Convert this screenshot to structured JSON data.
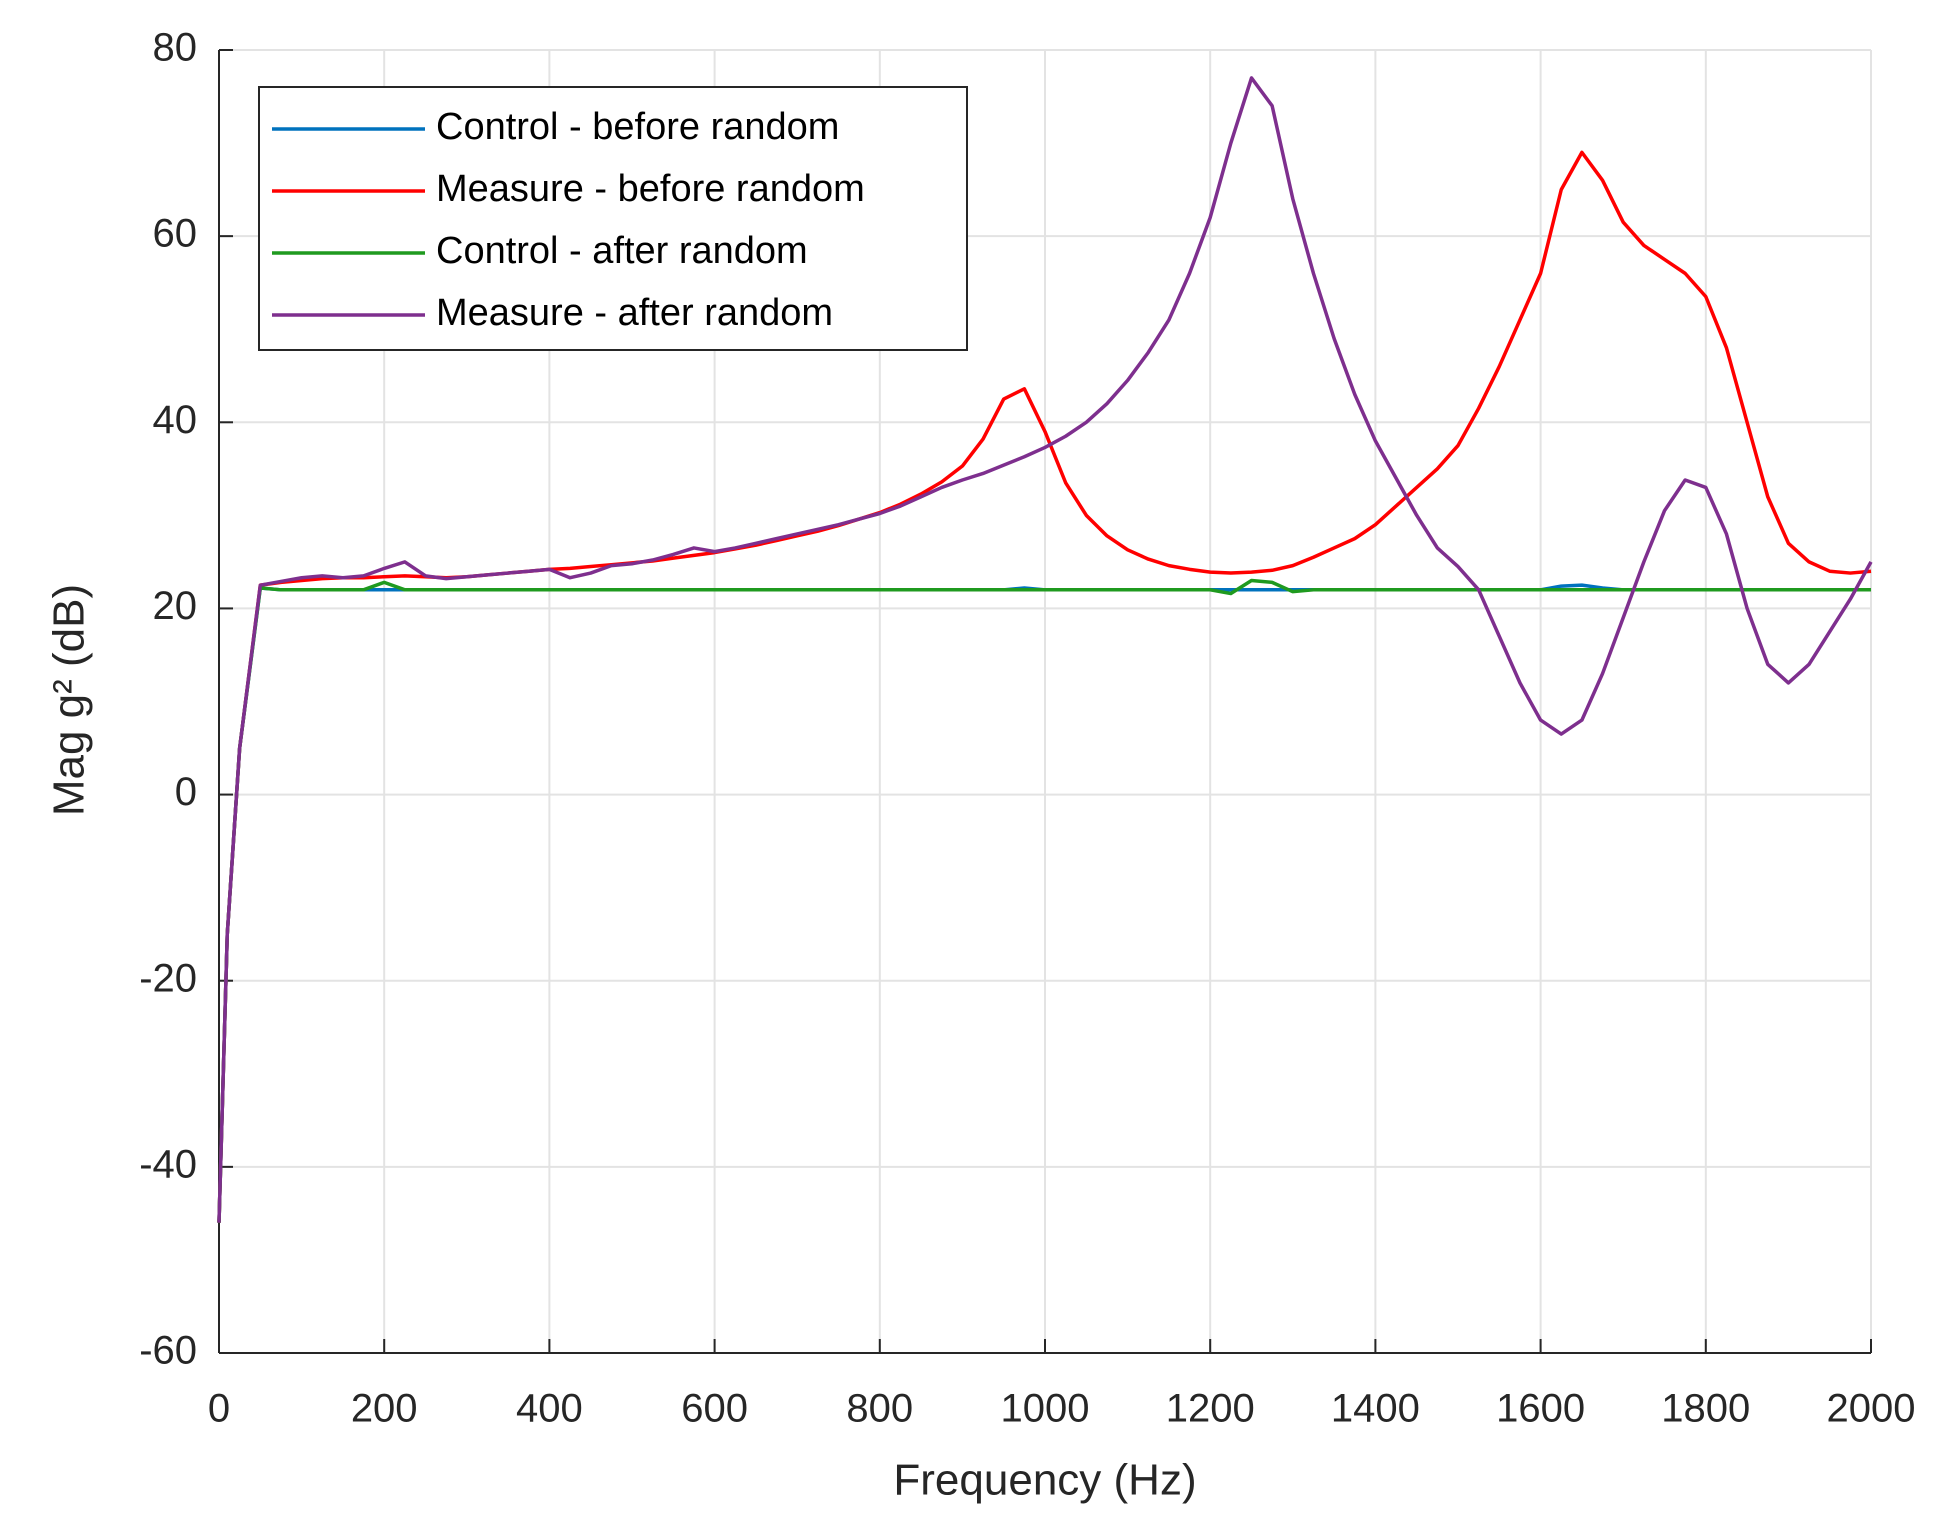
{
  "chart_data": {
    "type": "line",
    "x_label": "Frequency (Hz)",
    "y_label": "Mag g² (dB)",
    "x": [
      0,
      10,
      25,
      50,
      75,
      100,
      125,
      150,
      175,
      200,
      225,
      250,
      275,
      300,
      325,
      350,
      375,
      400,
      425,
      450,
      475,
      500,
      525,
      550,
      575,
      600,
      625,
      650,
      675,
      700,
      725,
      750,
      775,
      800,
      825,
      850,
      875,
      900,
      925,
      950,
      975,
      1000,
      1025,
      1050,
      1075,
      1100,
      1125,
      1150,
      1175,
      1200,
      1225,
      1250,
      1275,
      1300,
      1325,
      1350,
      1375,
      1400,
      1425,
      1450,
      1475,
      1500,
      1525,
      1550,
      1575,
      1600,
      1625,
      1650,
      1675,
      1700,
      1725,
      1750,
      1775,
      1800,
      1825,
      1850,
      1875,
      1900,
      1925,
      1950,
      1975,
      2000
    ],
    "series": [
      {
        "name": "Control - before random",
        "color": "#0072bd",
        "values": [
          -46,
          -15,
          5,
          22.2,
          22,
          22,
          22,
          22,
          22,
          22,
          22,
          22,
          22,
          22,
          22,
          22,
          22,
          22,
          22,
          22,
          22,
          22,
          22,
          22,
          22,
          22,
          22,
          22,
          22,
          22,
          22,
          22,
          22,
          22,
          22,
          22,
          22,
          22,
          22,
          22,
          22.2,
          22,
          22,
          22,
          22,
          22,
          22,
          22,
          22,
          22,
          22,
          22,
          22,
          22,
          22,
          22,
          22,
          22,
          22,
          22,
          22,
          22,
          22,
          22,
          22,
          22,
          22.4,
          22.5,
          22.2,
          22,
          22,
          22,
          22,
          22,
          22,
          22,
          22,
          22,
          22,
          22,
          22,
          22
        ]
      },
      {
        "name": "Measure - before random",
        "color": "#ff0000",
        "values": [
          -46,
          -15,
          5,
          22.5,
          22.8,
          23,
          23.2,
          23.3,
          23.3,
          23.4,
          23.5,
          23.4,
          23.3,
          23.4,
          23.6,
          23.8,
          24,
          24.2,
          24.3,
          24.5,
          24.7,
          24.9,
          25.1,
          25.4,
          25.7,
          26,
          26.4,
          26.8,
          27.3,
          27.8,
          28.3,
          28.9,
          29.6,
          30.3,
          31.2,
          32.3,
          33.6,
          35.3,
          38.2,
          42.5,
          43.6,
          39,
          33.5,
          30,
          27.8,
          26.3,
          25.3,
          24.6,
          24.2,
          23.9,
          23.8,
          23.9,
          24.1,
          24.6,
          25.5,
          26.5,
          27.5,
          29,
          31,
          33,
          35,
          37.5,
          41.5,
          46,
          51,
          56,
          65,
          69,
          66,
          61.5,
          59,
          57.5,
          56,
          53.5,
          48,
          40,
          32,
          27,
          25,
          24,
          23.8,
          24
        ]
      },
      {
        "name": "Control - after random",
        "color": "#1f9a1f",
        "values": [
          -46,
          -15,
          5,
          22.2,
          22,
          22,
          22,
          22,
          22,
          22.8,
          22,
          22,
          22,
          22,
          22,
          22,
          22,
          22,
          22,
          22,
          22,
          22,
          22,
          22,
          22,
          22,
          22,
          22,
          22,
          22,
          22,
          22,
          22,
          22,
          22,
          22,
          22,
          22,
          22,
          22,
          22,
          22,
          22,
          22,
          22,
          22,
          22,
          22,
          22,
          22,
          21.6,
          23,
          22.8,
          21.8,
          22,
          22,
          22,
          22,
          22,
          22,
          22,
          22,
          22,
          22,
          22,
          22,
          22,
          22,
          22,
          22,
          22,
          22,
          22,
          22,
          22,
          22,
          22,
          22,
          22,
          22,
          22,
          22
        ]
      },
      {
        "name": "Measure - after random",
        "color": "#7e2f8e",
        "values": [
          -46,
          -15,
          5,
          22.5,
          22.9,
          23.3,
          23.5,
          23.3,
          23.5,
          24.3,
          25,
          23.5,
          23.2,
          23.4,
          23.6,
          23.8,
          24,
          24.2,
          23.3,
          23.8,
          24.6,
          24.8,
          25.2,
          25.8,
          26.5,
          26.1,
          26.5,
          27,
          27.5,
          28,
          28.5,
          29,
          29.6,
          30.2,
          31,
          32,
          33,
          33.8,
          34.5,
          35.4,
          36.3,
          37.3,
          38.5,
          40,
          42,
          44.5,
          47.5,
          51,
          56,
          62,
          70,
          77,
          74,
          64,
          56,
          49,
          43,
          38,
          34,
          30,
          26.5,
          24.5,
          22,
          17,
          12,
          8,
          6.5,
          8,
          13,
          19,
          25,
          30.5,
          33.8,
          33,
          28,
          20,
          14,
          12,
          14,
          17.5,
          21,
          25
        ]
      }
    ],
    "xlim": [
      0,
      2000
    ],
    "xticks": [
      0,
      200,
      400,
      600,
      800,
      1000,
      1200,
      1400,
      1600,
      1800,
      2000
    ],
    "ylim": [
      -60,
      80
    ],
    "yticks": [
      -60,
      -40,
      -20,
      0,
      20,
      40,
      60,
      80
    ],
    "grid": true,
    "legend": "northwest"
  }
}
